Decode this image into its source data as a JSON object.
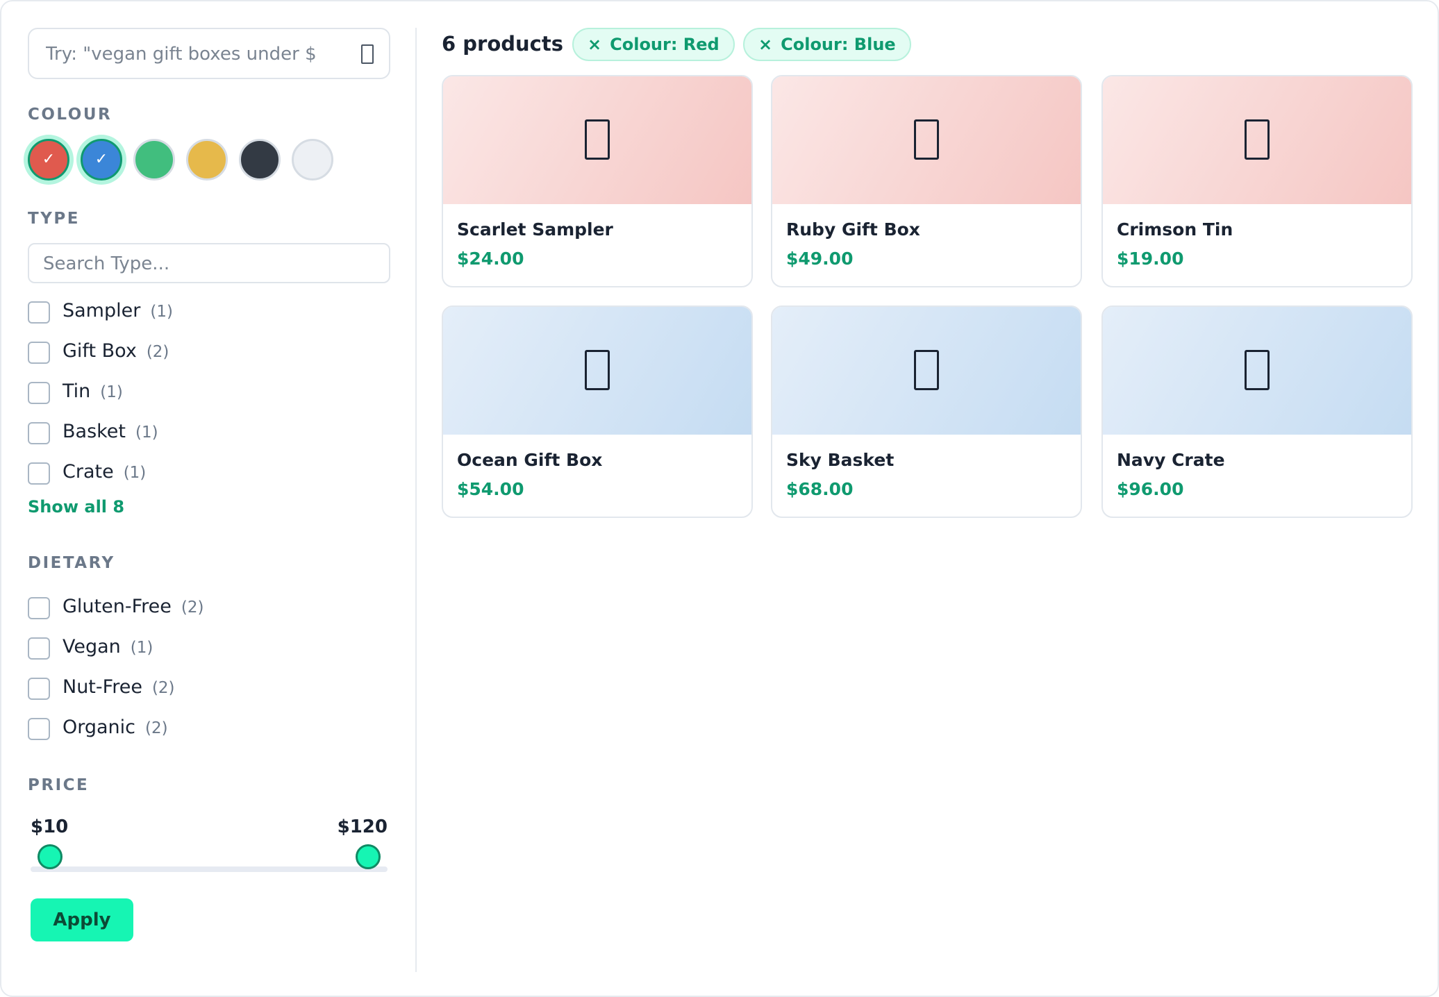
{
  "search": {
    "placeholder": "Try: \"vegan gift boxes under $",
    "icon": "search-icon"
  },
  "colour": {
    "label": "COLOUR",
    "swatches": [
      {
        "name": "red",
        "color": "#e05a4e",
        "selected": true
      },
      {
        "name": "blue",
        "color": "#3b86d8",
        "selected": true
      },
      {
        "name": "green",
        "color": "#41be7e",
        "selected": false
      },
      {
        "name": "yellow",
        "color": "#e6b94b",
        "selected": false
      },
      {
        "name": "black",
        "color": "#333a44",
        "selected": false
      },
      {
        "name": "white",
        "color": "#edf0f4",
        "selected": false
      }
    ],
    "check_glyph": "✓"
  },
  "type": {
    "label": "TYPE",
    "search_placeholder": "Search Type...",
    "options": [
      {
        "label": "Sampler",
        "count": "(1)"
      },
      {
        "label": "Gift Box",
        "count": "(2)"
      },
      {
        "label": "Tin",
        "count": "(1)"
      },
      {
        "label": "Basket",
        "count": "(1)"
      },
      {
        "label": "Crate",
        "count": "(1)"
      }
    ],
    "show_all": "Show all 8"
  },
  "dietary": {
    "label": "DIETARY",
    "options": [
      {
        "label": "Gluten-Free",
        "count": "(2)"
      },
      {
        "label": "Vegan",
        "count": "(1)"
      },
      {
        "label": "Nut-Free",
        "count": "(2)"
      },
      {
        "label": "Organic",
        "count": "(2)"
      }
    ]
  },
  "price": {
    "label": "PRICE",
    "min_label": "$10",
    "max_label": "$120",
    "range_min": 10,
    "range_max": 120,
    "selected_min": 10,
    "selected_max": 120,
    "apply_label": "Apply"
  },
  "results": {
    "count_label": "6 products",
    "chips": [
      {
        "remove_glyph": "×",
        "label": "Colour: Red"
      },
      {
        "remove_glyph": "×",
        "label": "Colour: Blue"
      }
    ],
    "products": [
      {
        "name": "Scarlet Sampler",
        "price": "$24.00",
        "tint": "red",
        "icon": "product-icon"
      },
      {
        "name": "Ruby Gift Box",
        "price": "$49.00",
        "tint": "red",
        "icon": "product-icon"
      },
      {
        "name": "Crimson Tin",
        "price": "$19.00",
        "tint": "red",
        "icon": "product-icon"
      },
      {
        "name": "Ocean Gift Box",
        "price": "$54.00",
        "tint": "blue",
        "icon": "product-icon"
      },
      {
        "name": "Sky Basket",
        "price": "$68.00",
        "tint": "blue",
        "icon": "product-icon"
      },
      {
        "name": "Navy Crate",
        "price": "$96.00",
        "tint": "blue",
        "icon": "product-icon"
      }
    ]
  }
}
